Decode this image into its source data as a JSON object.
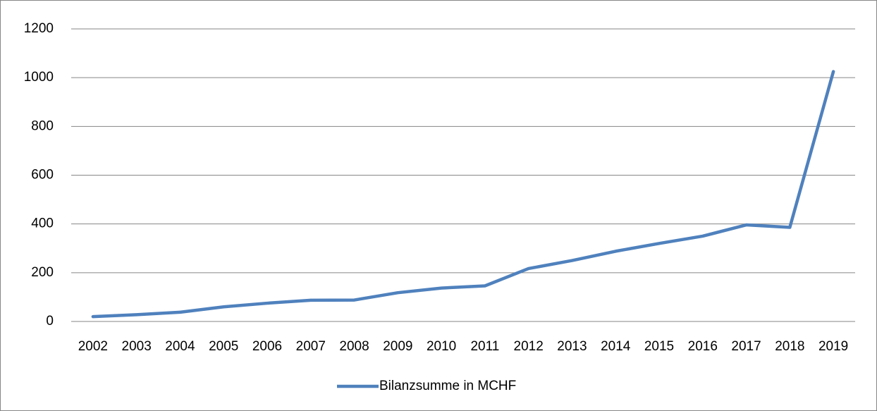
{
  "chart_data": {
    "type": "line",
    "categories": [
      "2002",
      "2003",
      "2004",
      "2005",
      "2006",
      "2007",
      "2008",
      "2009",
      "2010",
      "2011",
      "2012",
      "2013",
      "2014",
      "2015",
      "2016",
      "2017",
      "2018",
      "2019"
    ],
    "series": [
      {
        "name": "Bilanzsumme in MCHF",
        "color": "#4f81bd",
        "values": [
          20,
          28,
          38,
          60,
          75,
          87,
          88,
          118,
          137,
          146,
          217,
          250,
          288,
          320,
          350,
          396,
          386,
          1025
        ]
      }
    ],
    "ylim": [
      0,
      1200
    ],
    "yticks": [
      0,
      200,
      400,
      600,
      800,
      1000,
      1200
    ],
    "grid": true,
    "legend": "bottom"
  }
}
